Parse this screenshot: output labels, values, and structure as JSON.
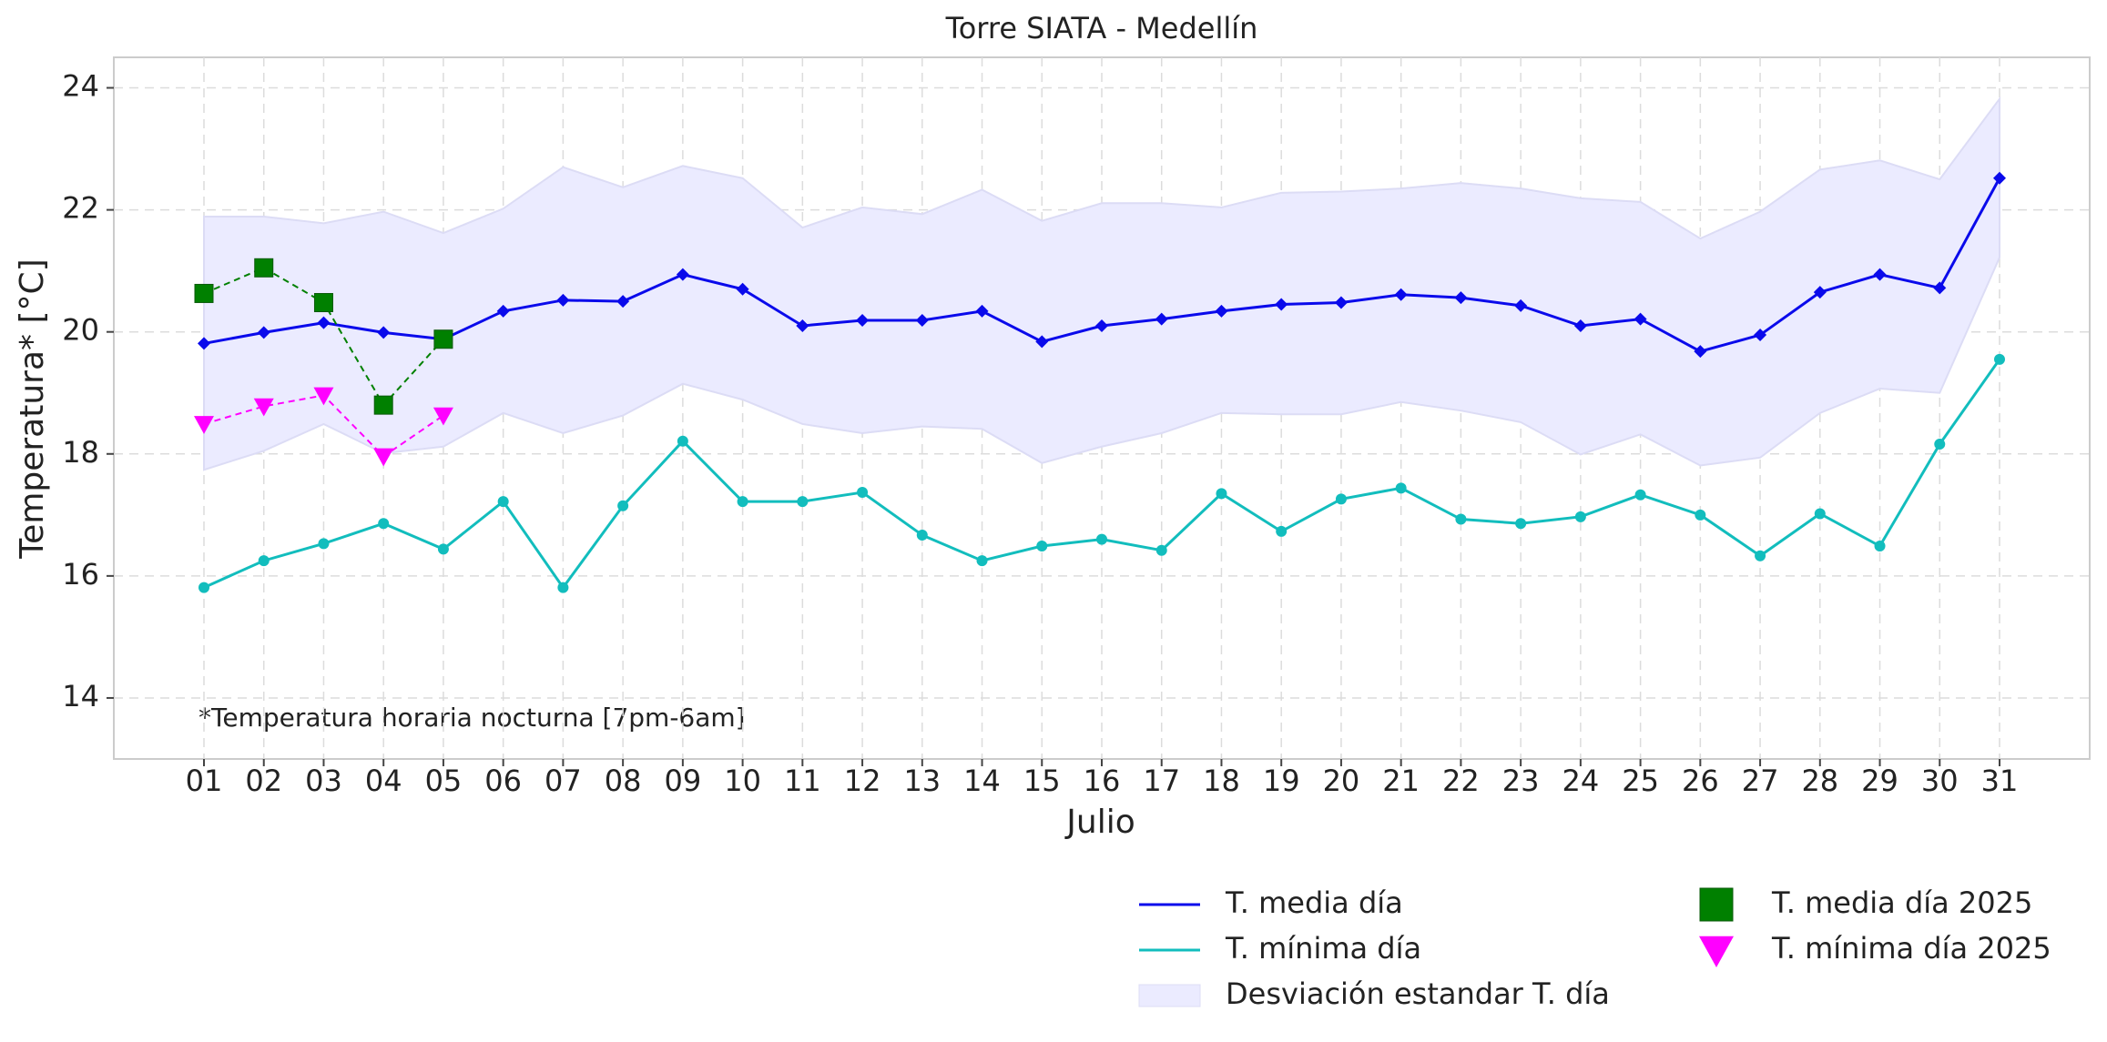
{
  "chart_data": {
    "type": "line",
    "title": "Torre SIATA - Medellín",
    "x_label": "Julio",
    "y_label": "Temperatura* [°C]",
    "annotation": "*Temperatura horaria nocturna [7pm-6am]",
    "categories": [
      "01",
      "02",
      "03",
      "04",
      "05",
      "06",
      "07",
      "08",
      "09",
      "10",
      "11",
      "12",
      "13",
      "14",
      "15",
      "16",
      "17",
      "18",
      "19",
      "20",
      "21",
      "22",
      "23",
      "24",
      "25",
      "26",
      "27",
      "28",
      "29",
      "30",
      "31"
    ],
    "ylim": [
      13,
      24.5
    ],
    "yticks": [
      14,
      16,
      18,
      20,
      22,
      24
    ],
    "grid": true,
    "legend": "below-right",
    "band": {
      "name": "Desviación estandar T. día",
      "color": "#ebebff",
      "upper": [
        21.89,
        21.89,
        21.78,
        21.97,
        21.62,
        22.02,
        22.7,
        22.37,
        22.72,
        22.52,
        21.71,
        22.04,
        21.93,
        22.33,
        21.82,
        22.11,
        22.11,
        22.04,
        22.28,
        22.3,
        22.35,
        22.44,
        22.35,
        22.19,
        22.13,
        21.53,
        21.97,
        22.66,
        22.81,
        22.5,
        23.82
      ],
      "lower": [
        17.74,
        18.05,
        18.49,
        18.01,
        18.12,
        18.67,
        18.34,
        18.63,
        19.15,
        18.89,
        18.49,
        18.34,
        18.45,
        18.41,
        17.85,
        18.12,
        18.34,
        18.67,
        18.65,
        18.65,
        18.85,
        18.71,
        18.52,
        17.99,
        18.32,
        17.81,
        17.94,
        18.67,
        19.07,
        19.0,
        21.22
      ]
    },
    "series": [
      {
        "name": "T. media día",
        "color": "#0a0aeb",
        "marker": "diamond",
        "values": [
          19.81,
          19.99,
          20.15,
          19.99,
          19.88,
          20.34,
          20.52,
          20.5,
          20.94,
          20.7,
          20.1,
          20.19,
          20.19,
          20.34,
          19.84,
          20.1,
          20.21,
          20.34,
          20.45,
          20.48,
          20.61,
          20.56,
          20.43,
          20.1,
          20.21,
          19.68,
          19.95,
          20.65,
          20.94,
          20.72,
          22.52
        ]
      },
      {
        "name": "T. mínima día",
        "color": "#12bdbd",
        "marker": "circle",
        "values": [
          15.81,
          16.25,
          16.53,
          16.86,
          16.44,
          17.22,
          15.81,
          17.15,
          18.21,
          17.22,
          17.22,
          17.37,
          16.67,
          16.25,
          16.49,
          16.6,
          16.42,
          17.35,
          16.73,
          17.26,
          17.44,
          16.93,
          16.86,
          16.97,
          17.33,
          17.0,
          16.33,
          17.02,
          16.49,
          18.16,
          19.55
        ]
      },
      {
        "name": "T. media día 2025",
        "color": "#008000",
        "marker": "square",
        "dashed": true,
        "values": [
          20.63,
          21.05,
          20.48,
          18.8,
          19.88,
          null,
          null,
          null,
          null,
          null,
          null,
          null,
          null,
          null,
          null,
          null,
          null,
          null,
          null,
          null,
          null,
          null,
          null,
          null,
          null,
          null,
          null,
          null,
          null,
          null,
          null
        ]
      },
      {
        "name": "T. mínima día 2025",
        "color": "#ff00ff",
        "marker": "triangle",
        "dashed": true,
        "values": [
          18.49,
          18.78,
          18.96,
          17.96,
          18.63,
          null,
          null,
          null,
          null,
          null,
          null,
          null,
          null,
          null,
          null,
          null,
          null,
          null,
          null,
          null,
          null,
          null,
          null,
          null,
          null,
          null,
          null,
          null,
          null,
          null,
          null
        ]
      }
    ]
  }
}
